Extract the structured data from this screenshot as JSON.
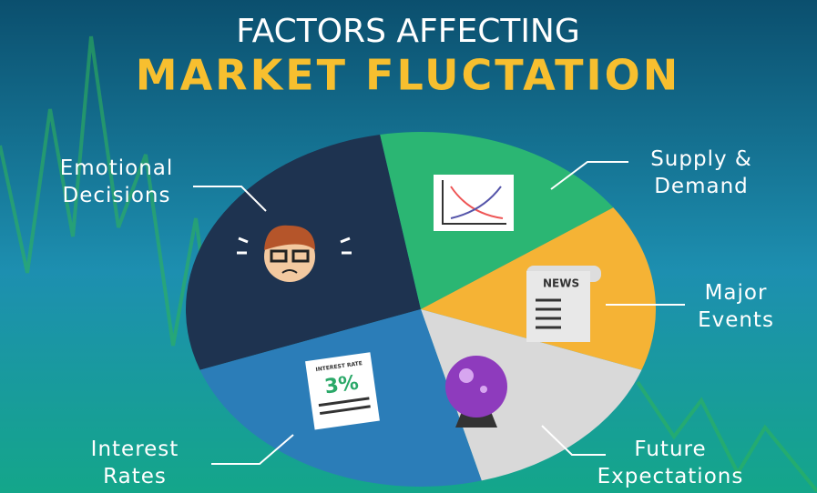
{
  "header": {
    "title_line1": "FACTORS AFFECTING",
    "title_line2": "MARKET FLUCTATION"
  },
  "slices": [
    {
      "label": "Emotional Decisions"
    },
    {
      "label": "Supply & Demand"
    },
    {
      "label": "Major Events",
      "icon_text": "NEWS"
    },
    {
      "label": "Future Expectations"
    },
    {
      "label": "Interest Rates",
      "icon_heading": "INTEREST RATE",
      "icon_text": "3%"
    }
  ]
}
